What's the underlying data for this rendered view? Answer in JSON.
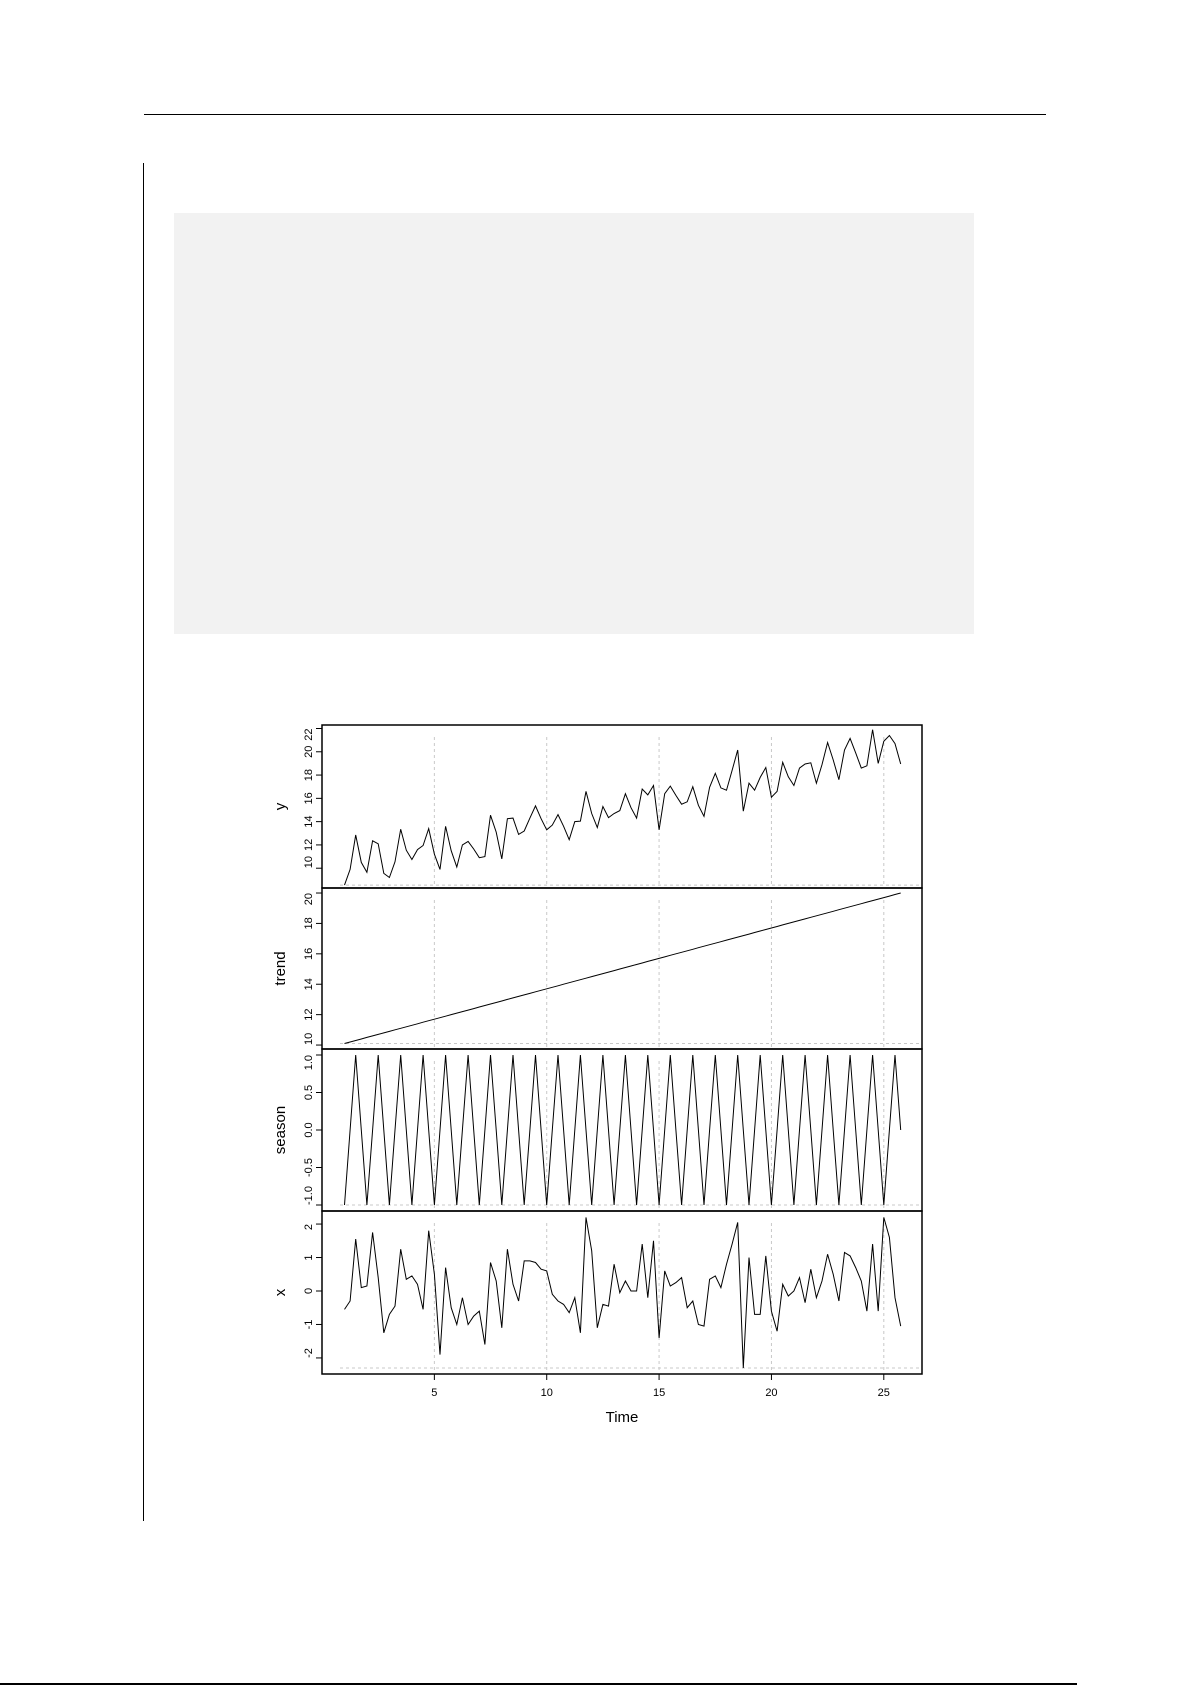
{
  "chart_data": {
    "type": "line",
    "xlabel": "Time",
    "x_start": 1,
    "x_step": 0.25,
    "x_ticks": [
      5,
      10,
      15,
      20,
      25
    ],
    "xlim": [
      0.0,
      26.7
    ],
    "grid": "vertical dotted at x ticks",
    "panels": [
      {
        "name": "y",
        "ylabel": "y",
        "ylim": [
          8.3,
          22.3
        ],
        "y_ticks": [
          10,
          12,
          14,
          16,
          18,
          20,
          22
        ],
        "values": [
          8.55,
          9.9,
          12.85,
          10.5,
          9.65,
          12.35,
          12.1,
          9.55,
          9.2,
          10.55,
          13.35,
          11.55,
          10.75,
          11.6,
          11.95,
          13.4,
          11.2,
          9.9,
          13.6,
          11.5,
          10.1,
          12.0,
          12.3,
          11.65,
          10.9,
          11.0,
          14.55,
          13.1,
          10.8,
          14.25,
          14.3,
          12.9,
          13.2,
          14.3,
          15.35,
          14.25,
          13.3,
          13.7,
          14.6,
          13.6,
          12.45,
          14.0,
          14.05,
          16.6,
          14.7,
          13.5,
          15.3,
          14.35,
          14.7,
          14.95,
          16.4,
          15.2,
          14.3,
          16.8,
          16.3,
          17.1,
          13.3,
          16.4,
          17.05,
          16.25,
          15.5,
          15.7,
          17.0,
          15.4,
          14.45,
          16.95,
          18.15,
          16.9,
          16.7,
          18.4,
          20.15,
          14.9,
          17.3,
          16.7,
          17.8,
          18.65,
          16.1,
          16.6,
          19.1,
          17.85,
          17.1,
          18.6,
          18.95,
          19.05,
          17.3,
          18.9,
          20.8,
          19.3,
          17.6,
          20.15,
          21.15,
          19.9,
          18.6,
          18.8,
          21.9,
          19.0,
          20.9,
          21.4,
          20.7,
          18.95
        ]
      },
      {
        "name": "trend",
        "ylabel": "trend",
        "ylim": [
          9.74,
          20.33
        ],
        "y_ticks": [
          10,
          12,
          14,
          16,
          18,
          20
        ],
        "values": [
          10.1,
          10.2,
          10.3,
          10.4,
          10.5,
          10.6,
          10.7,
          10.8,
          10.9,
          11.0,
          11.1,
          11.2,
          11.3,
          11.4,
          11.5,
          11.6,
          11.7,
          11.8,
          11.9,
          12.0,
          12.1,
          12.2,
          12.3,
          12.4,
          12.5,
          12.6,
          12.7,
          12.8,
          12.9,
          13.0,
          13.1,
          13.2,
          13.3,
          13.4,
          13.5,
          13.6,
          13.7,
          13.8,
          13.9,
          14.0,
          14.1,
          14.2,
          14.3,
          14.4,
          14.5,
          14.6,
          14.7,
          14.8,
          14.9,
          15.0,
          15.1,
          15.2,
          15.3,
          15.4,
          15.5,
          15.6,
          15.7,
          15.8,
          15.9,
          16.0,
          16.1,
          16.2,
          16.3,
          16.4,
          16.5,
          16.6,
          16.7,
          16.8,
          16.9,
          17.0,
          17.1,
          17.2,
          17.3,
          17.4,
          17.5,
          17.6,
          17.7,
          17.8,
          17.9,
          18.0,
          18.1,
          18.2,
          18.3,
          18.4,
          18.5,
          18.6,
          18.7,
          18.8,
          18.9,
          19.0,
          19.1,
          19.2,
          19.3,
          19.4,
          19.5,
          19.6,
          19.7,
          19.8,
          19.9,
          20.0
        ]
      },
      {
        "name": "season",
        "ylabel": "season",
        "ylim": [
          -1.08,
          1.08
        ],
        "y_ticks": [
          -1.0,
          -0.5,
          0.0,
          0.5,
          1.0
        ],
        "y_tick_labels": [
          "-1.0",
          "-0.5",
          "0.0",
          "0.5",
          "1.0"
        ],
        "pattern": [
          -1,
          0,
          1,
          0
        ]
      },
      {
        "name": "x",
        "ylabel": "x",
        "ylim": [
          -2.48,
          2.39
        ],
        "y_ticks": [
          -2,
          -1,
          0,
          1,
          2
        ],
        "values": [
          -0.55,
          -0.3,
          1.55,
          0.1,
          0.15,
          1.75,
          0.4,
          -1.25,
          -0.7,
          -0.45,
          1.25,
          0.35,
          0.45,
          0.2,
          -0.55,
          1.8,
          0.5,
          -1.9,
          0.7,
          -0.5,
          -1.0,
          -0.2,
          -1.0,
          -0.75,
          -0.6,
          -1.6,
          0.85,
          0.3,
          -1.1,
          1.25,
          0.2,
          -0.3,
          0.9,
          0.9,
          0.85,
          0.65,
          0.6,
          -0.1,
          -0.3,
          -0.4,
          -0.65,
          -0.2,
          -1.25,
          2.2,
          1.2,
          -1.1,
          -0.4,
          -0.45,
          0.8,
          -0.05,
          0.3,
          0,
          0,
          1.4,
          -0.2,
          1.5,
          -1.4,
          0.6,
          0.15,
          0.25,
          0.4,
          -0.5,
          -0.3,
          -1.0,
          -1.05,
          0.35,
          0.45,
          0.1,
          0.8,
          1.4,
          2.05,
          -2.3,
          1.0,
          -0.7,
          -0.7,
          1.05,
          -0.6,
          -1.2,
          0.2,
          -0.15,
          0,
          0.4,
          -0.35,
          0.65,
          -0.2,
          0.3,
          1.1,
          0.5,
          -0.3,
          1.15,
          1.05,
          0.7,
          0.3,
          -0.6,
          1.4,
          -0.6,
          2.2,
          1.6,
          -0.2,
          -1.05
        ]
      }
    ],
    "colors": {
      "line": "#000000",
      "grid": "#c8c8c8",
      "code_block": "#f2f2f2"
    }
  }
}
